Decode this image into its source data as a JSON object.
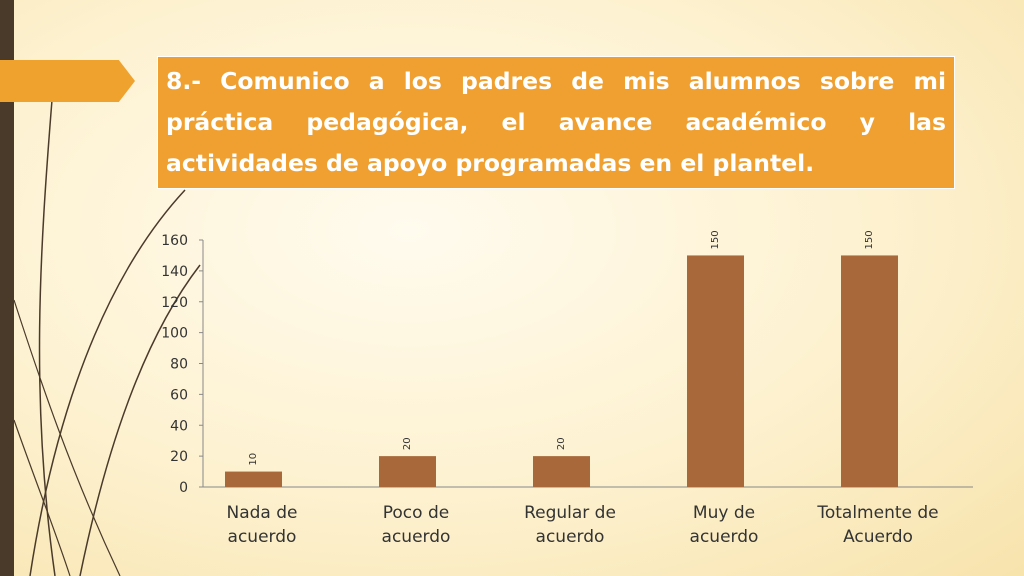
{
  "title": "8.- Comunico a los padres de mis alumnos sobre mi práctica pedagógica, el avance académico y las actividades de apoyo programadas en el plantel.",
  "colors": {
    "bar": "#a8683a",
    "accent": "#efa031",
    "dark": "#4a3a2a"
  },
  "chart_data": {
    "type": "bar",
    "categories": [
      [
        "Nada de",
        "acuerdo"
      ],
      [
        "Poco de",
        "acuerdo"
      ],
      [
        "Regular de",
        "acuerdo"
      ],
      [
        "Muy de",
        "acuerdo"
      ],
      [
        "Totalmente de",
        "Acuerdo"
      ]
    ],
    "values": [
      10,
      20,
      20,
      150,
      150
    ],
    "ylim": [
      0,
      160
    ],
    "yticks": [
      0,
      20,
      40,
      60,
      80,
      100,
      120,
      140,
      160
    ],
    "data_labels": true,
    "grid": false
  }
}
